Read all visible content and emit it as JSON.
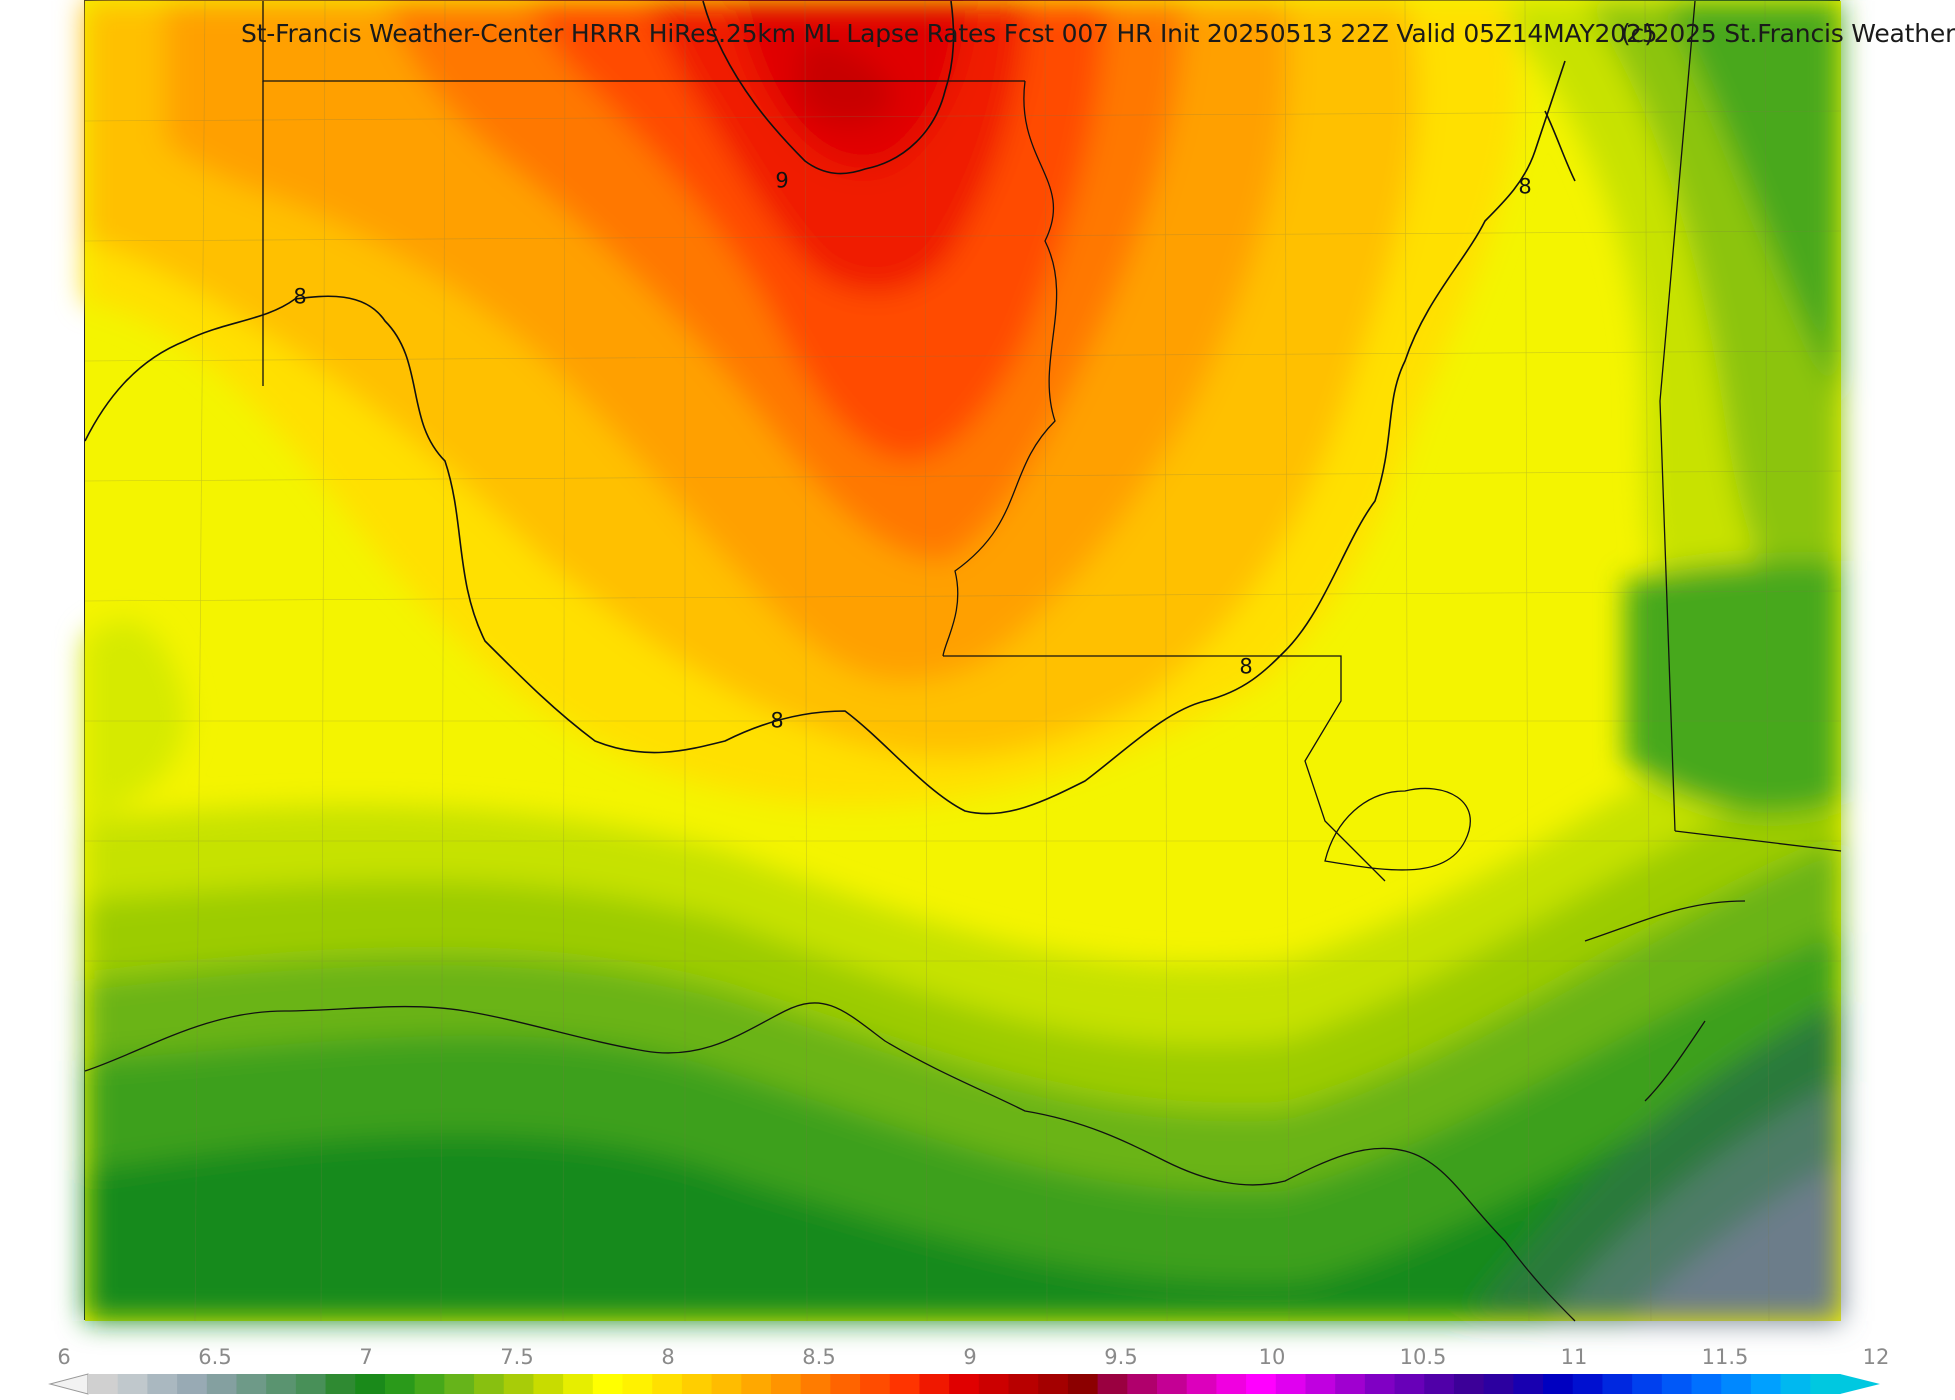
{
  "header": {
    "title": "St-Francis Weather-Center HRRR HiRes.25km ML Lapse Rates  Fcst 007 HR Init 20250513 22Z  Valid 05Z14MAY2025",
    "copyright": "(c)2025 St.Francis Weather"
  },
  "map": {
    "field": "ML Lapse Rates",
    "contour_labels": [
      "9",
      "8",
      "8",
      "8",
      "8"
    ],
    "palette": {
      "ocean_gray": "#6c7d8a",
      "dark_green": "#0e7d1a",
      "green": "#3ea01c",
      "yellow_green": "#c8e400",
      "yellow": "#f8f800",
      "orange": "#ffa000",
      "red_orange": "#ff4000",
      "red": "#ee0000"
    }
  },
  "colorbar": {
    "tick_labels": [
      "6",
      "6.5",
      "7",
      "7.5",
      "8",
      "8.5",
      "9",
      "9.5",
      "10",
      "10.5",
      "11",
      "11.5",
      "12"
    ],
    "min": 6,
    "max": 12,
    "colors": [
      "#d0d0d0",
      "#c0c8cc",
      "#aab8c0",
      "#98aab4",
      "#84a0a0",
      "#6e9a88",
      "#5a9470",
      "#489058",
      "#2f8a32",
      "#1a8a1a",
      "#2a9a1a",
      "#46a81a",
      "#66b41a",
      "#88c010",
      "#a8cc08",
      "#c8dc00",
      "#e6ee00",
      "#ffff00",
      "#fff200",
      "#ffe000",
      "#ffce00",
      "#ffbc00",
      "#ffa800",
      "#ff9400",
      "#ff7c00",
      "#ff6400",
      "#ff4c00",
      "#ff3400",
      "#f01800",
      "#e00000",
      "#cc0000",
      "#b80000",
      "#a40000",
      "#8c0000",
      "#9a0040",
      "#b0006c",
      "#c40094",
      "#dc00bc",
      "#f000e0",
      "#ff00ff",
      "#e000f0",
      "#c000e0",
      "#a000d0",
      "#8000c4",
      "#6800b8",
      "#5000a8",
      "#3c0098",
      "#2c00a0",
      "#1800b0",
      "#0000c0",
      "#0010d0",
      "#0028e0",
      "#0040ee",
      "#0058f8",
      "#0070ff",
      "#0088ff",
      "#00a0ff",
      "#00b8f0",
      "#00c8e0"
    ]
  }
}
